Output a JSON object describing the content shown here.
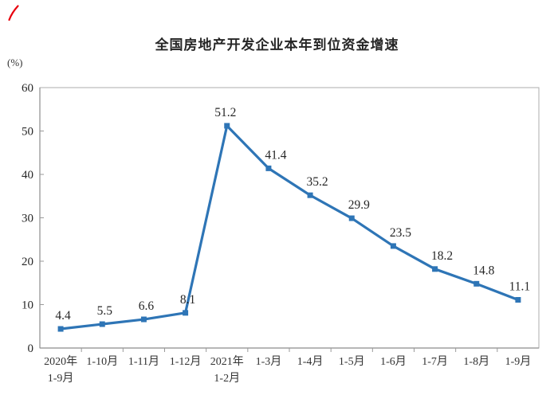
{
  "page": {
    "background": "#ffffff",
    "annotation_mark": "red-pen-tick"
  },
  "chart_data": {
    "type": "line",
    "title": "全国房地产开发企业本年到位资金增速",
    "unit_label": "(%)",
    "categories": [
      "2020年\n1-9月",
      "1-10月",
      "1-11月",
      "1-12月",
      "2021年\n1-2月",
      "1-3月",
      "1-4月",
      "1-5月",
      "1-6月",
      "1-7月",
      "1-8月",
      "1-9月"
    ],
    "values": [
      4.4,
      5.5,
      6.6,
      8.1,
      51.2,
      41.4,
      35.2,
      29.9,
      23.5,
      18.2,
      14.8,
      11.1
    ],
    "data_labels": [
      "4.4",
      "5.5",
      "6.6",
      "8.1",
      "51.2",
      "41.4",
      "35.2",
      "29.9",
      "23.5",
      "18.2",
      "14.8",
      "11.1"
    ],
    "yticks": [
      0,
      10,
      20,
      30,
      40,
      50,
      60
    ],
    "ylim": [
      0,
      60
    ],
    "xlabel": "",
    "ylabel": "(%)",
    "grid": false,
    "legend": "none",
    "colors": {
      "line": "#2E75B6",
      "marker": "#2E75B6",
      "text": "#262626",
      "axis_border": "#ADADAD",
      "axis_main": "#8C8C8C",
      "tick": "#999999",
      "red_mark": "#E8000D"
    }
  }
}
